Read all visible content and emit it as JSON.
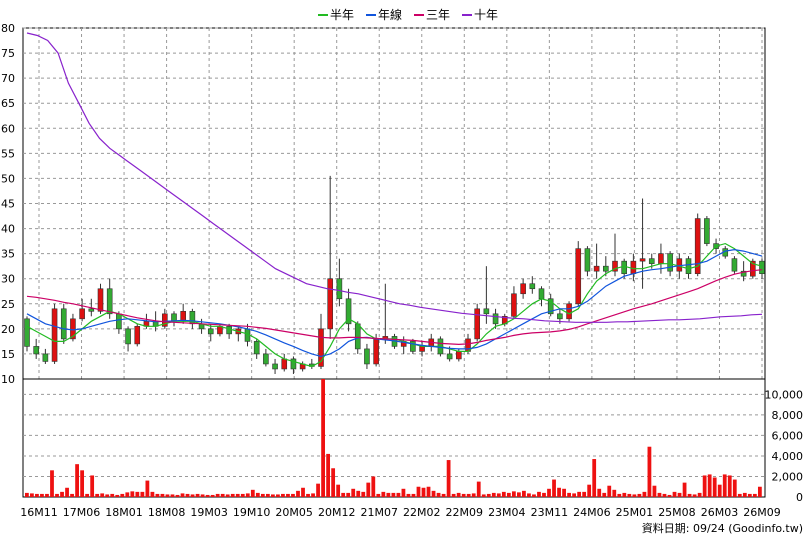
{
  "chart_data": [
    {
      "type": "candlestick",
      "title": "",
      "legend": {
        "placement": "top-center",
        "items": [
          {
            "name": "半年",
            "color": "#22bb22"
          },
          {
            "name": "年線",
            "color": "#1155dd"
          },
          {
            "name": "三年",
            "color": "#cc0066"
          },
          {
            "name": "十年",
            "color": "#8822cc"
          }
        ]
      },
      "ylim": [
        10,
        80
      ],
      "yticks": [
        80,
        75,
        70,
        65,
        60,
        55,
        50,
        45,
        40,
        35,
        30,
        25,
        20,
        15,
        10
      ],
      "xlabels": [
        "16M11",
        "17M06",
        "18M01",
        "18M08",
        "19M03",
        "19M10",
        "20M05",
        "20M12",
        "21M07",
        "22M02",
        "22M09",
        "23M04",
        "23M11",
        "24M06",
        "25M01",
        "25M08",
        "26M03",
        "26M09"
      ],
      "grid": true,
      "candle_colors": {
        "up": "#dd1111",
        "down": "#33aa33"
      },
      "candles": [
        [
          22,
          22.5,
          15.5,
          16.5
        ],
        [
          16.5,
          18,
          14,
          15
        ],
        [
          15,
          16,
          13,
          13.5
        ],
        [
          13.5,
          25,
          13,
          24
        ],
        [
          24,
          25,
          17,
          18
        ],
        [
          18,
          23,
          17.5,
          22
        ],
        [
          22,
          26,
          21.5,
          24
        ],
        [
          24,
          26,
          22.5,
          23.5
        ],
        [
          23.5,
          29,
          23,
          28
        ],
        [
          28,
          30,
          22,
          23
        ],
        [
          23,
          23.5,
          19,
          20
        ],
        [
          20,
          20.5,
          15.5,
          17
        ],
        [
          17,
          21,
          16.5,
          20.5
        ],
        [
          20.5,
          23,
          20,
          21.5
        ],
        [
          21.5,
          23.5,
          19.5,
          20.5
        ],
        [
          20.5,
          24,
          20,
          23
        ],
        [
          23,
          23.5,
          20.5,
          21.5
        ],
        [
          21.5,
          25,
          21,
          23.5
        ],
        [
          23.5,
          24,
          20,
          21
        ],
        [
          21,
          22,
          19,
          20
        ],
        [
          20,
          21,
          17.5,
          19
        ],
        [
          19,
          21,
          18.5,
          20.5
        ],
        [
          20.5,
          21,
          18,
          19
        ],
        [
          19,
          20.5,
          17.5,
          20
        ],
        [
          20,
          21,
          16.5,
          17.5
        ],
        [
          17.5,
          18,
          14,
          15
        ],
        [
          15,
          16,
          12.5,
          13
        ],
        [
          13,
          14,
          11,
          12
        ],
        [
          12,
          15,
          11.5,
          14
        ],
        [
          14,
          14.5,
          11,
          12
        ],
        [
          12,
          13.5,
          11.5,
          13
        ],
        [
          13,
          14,
          12,
          12.5
        ],
        [
          12.5,
          23,
          12,
          20
        ],
        [
          20,
          50.5,
          18,
          30
        ],
        [
          30,
          34,
          24.5,
          26
        ],
        [
          26,
          28,
          19.5,
          21
        ],
        [
          21,
          21.5,
          15,
          16
        ],
        [
          16,
          17,
          12,
          13
        ],
        [
          13,
          19,
          12.5,
          18
        ],
        [
          18,
          29,
          17,
          18.5
        ],
        [
          18.5,
          19,
          16,
          16.5
        ],
        [
          16.5,
          18.5,
          15,
          17.5
        ],
        [
          17.5,
          18,
          15,
          15.5
        ],
        [
          15.5,
          17.5,
          14.5,
          16.5
        ],
        [
          16.5,
          19,
          15.5,
          18
        ],
        [
          18,
          18.5,
          14.5,
          15
        ],
        [
          15,
          16.5,
          13.5,
          14
        ],
        [
          14,
          16,
          13.5,
          15.5
        ],
        [
          15.5,
          19,
          15,
          18
        ],
        [
          18,
          25,
          17.5,
          24
        ],
        [
          24,
          32.5,
          21,
          23
        ],
        [
          23,
          24,
          20,
          21
        ],
        [
          21,
          23,
          20.5,
          22.5
        ],
        [
          22.5,
          28.5,
          22,
          27
        ],
        [
          27,
          30,
          26,
          29
        ],
        [
          29,
          30.5,
          27,
          28
        ],
        [
          28,
          28.5,
          24.5,
          26
        ],
        [
          26,
          27,
          22.5,
          23
        ],
        [
          23,
          24,
          21,
          22
        ],
        [
          22,
          25.5,
          21.5,
          25
        ],
        [
          25,
          37.5,
          24.5,
          36
        ],
        [
          36,
          36.5,
          30.5,
          31.5
        ],
        [
          31.5,
          37,
          30,
          32.5
        ],
        [
          32.5,
          34.5,
          30.5,
          31.5
        ],
        [
          31.5,
          39,
          30.5,
          33.5
        ],
        [
          33.5,
          34,
          30,
          31
        ],
        [
          31,
          35,
          29.5,
          33.5
        ],
        [
          33.5,
          46,
          28,
          34
        ],
        [
          34,
          35,
          32,
          33
        ],
        [
          33,
          37,
          31,
          35
        ],
        [
          35,
          35.5,
          30.5,
          31.5
        ],
        [
          31.5,
          35,
          30,
          34
        ],
        [
          34,
          34.5,
          30,
          31
        ],
        [
          31,
          43,
          30.5,
          42
        ],
        [
          42,
          42.5,
          36.5,
          37
        ],
        [
          37,
          38,
          35,
          36
        ],
        [
          36,
          36.5,
          34,
          34.5
        ],
        [
          34,
          34.5,
          31,
          31.5
        ],
        [
          31.5,
          33.5,
          29.5,
          30.5
        ],
        [
          30.5,
          34,
          30,
          33.5
        ],
        [
          33.5,
          34,
          30,
          31
        ]
      ],
      "series": [
        {
          "name": "半年",
          "values": [
            20.5,
            19.5,
            18.5,
            17.5,
            17.5,
            18.5,
            20,
            21.5,
            22.5,
            23.5,
            23,
            22,
            21,
            20.5,
            20.5,
            21,
            21.5,
            21.5,
            21.5,
            21,
            20.5,
            20.5,
            20,
            19.5,
            19,
            18,
            16.5,
            15,
            14,
            13.5,
            13,
            12.5,
            13.5,
            16.5,
            20,
            22,
            21,
            19,
            18,
            18,
            18,
            17.5,
            17,
            16.5,
            16.5,
            16.5,
            16,
            15.5,
            15.5,
            17,
            19,
            20.5,
            21,
            22,
            23.5,
            25,
            26,
            25.5,
            24,
            23,
            24,
            27,
            29.5,
            31,
            32,
            32.5,
            32,
            32,
            32.5,
            33,
            33,
            32.5,
            32,
            32.5,
            34.5,
            36.5,
            37,
            36,
            34.5,
            33,
            32.5
          ]
        },
        {
          "name": "年線",
          "values": [
            23,
            22,
            21,
            20.5,
            20,
            19.8,
            20,
            20.5,
            21,
            21.5,
            21.8,
            22,
            21.8,
            21.6,
            21.4,
            21.5,
            21.6,
            21.7,
            21.6,
            21.4,
            21.2,
            21,
            20.7,
            20.4,
            20,
            19.5,
            18.8,
            18,
            17.2,
            16.5,
            15.7,
            15,
            14.5,
            15,
            16,
            17.5,
            18.2,
            18.3,
            18,
            17.8,
            17.6,
            17.3,
            17,
            16.7,
            16.5,
            16.3,
            16.1,
            16,
            16,
            16.3,
            17,
            18,
            19,
            20,
            21,
            22,
            23,
            23.5,
            24,
            24,
            24.5,
            25.5,
            27,
            28.5,
            29.5,
            30.5,
            31,
            31.5,
            31.8,
            32,
            32.3,
            32.6,
            32.8,
            33,
            33.5,
            34.5,
            35.5,
            35.8,
            35.5,
            35,
            34.5
          ]
        },
        {
          "name": "三年",
          "values": [
            26.5,
            26.3,
            26,
            25.7,
            25.3,
            25,
            24.6,
            24.2,
            23.8,
            23.4,
            23,
            22.6,
            22.2,
            21.9,
            21.6,
            21.4,
            21.3,
            21.2,
            21.1,
            21,
            20.9,
            20.8,
            20.7,
            20.6,
            20.5,
            20.3,
            20.1,
            19.8,
            19.5,
            19.2,
            18.9,
            18.6,
            18.3,
            18.2,
            18.2,
            18.3,
            18.3,
            18.2,
            18.1,
            18,
            17.9,
            17.8,
            17.7,
            17.5,
            17.3,
            17.1,
            17,
            16.9,
            17,
            17.3,
            17.7,
            18,
            18.3,
            18.7,
            19,
            19.2,
            19.3,
            19.4,
            19.6,
            19.9,
            20.4,
            21,
            21.6,
            22.2,
            22.8,
            23.4,
            24,
            24.5,
            25,
            25.6,
            26.2,
            26.8,
            27.4,
            28,
            28.8,
            29.6,
            30.3,
            30.9,
            31.3,
            31.6,
            31.8
          ]
        },
        {
          "name": "十年",
          "values": [
            79,
            78.5,
            77.5,
            75,
            69,
            65,
            61,
            58,
            56,
            54.5,
            53,
            51.5,
            50,
            48.5,
            47,
            45.5,
            44,
            42.5,
            41,
            39.5,
            38,
            36.5,
            35,
            33.5,
            32,
            31,
            30,
            29,
            28.5,
            28,
            27.7,
            27.3,
            27,
            26.5,
            26,
            25.5,
            25,
            24.7,
            24.3,
            24,
            23.7,
            23.4,
            23.1,
            22.9,
            22.7,
            22.5,
            22.3,
            22.1,
            22,
            21.8,
            21.6,
            21.5,
            21.4,
            21.3,
            21.3,
            21.3,
            21.3,
            21.4,
            21.4,
            21.5,
            21.6,
            21.7,
            21.8,
            21.8,
            21.9,
            22,
            22.2,
            22.4,
            22.5,
            22.6,
            22.8,
            22.9
          ]
        }
      ],
      "volume": {
        "yticks": [
          0,
          2000,
          4000,
          6000,
          8000,
          10000
        ],
        "ytick_labels": [
          "0",
          "2,000",
          "4,000",
          "6,000",
          "8,000",
          "10,000"
        ],
        "ylim": [
          0,
          11500
        ],
        "values": [
          400,
          350,
          300,
          300,
          300,
          2600,
          300,
          500,
          900,
          300,
          3200,
          2600,
          300,
          2100,
          300,
          350,
          250,
          300,
          200,
          300,
          450,
          550,
          500,
          500,
          1600,
          500,
          300,
          300,
          250,
          250,
          200,
          350,
          300,
          250,
          300,
          250,
          200,
          200,
          300,
          300,
          250,
          300,
          300,
          300,
          350,
          700,
          400,
          300,
          300,
          250,
          250,
          300,
          300,
          300,
          600,
          900,
          300,
          350,
          1300,
          11500,
          4200,
          2800,
          1200,
          400,
          400,
          800,
          600,
          500,
          1400,
          2000,
          300,
          500,
          400,
          400,
          400,
          800,
          300,
          300,
          1000,
          900,
          1000,
          600,
          400,
          300,
          3600,
          300,
          400,
          300,
          300,
          350,
          1500,
          250,
          300,
          400,
          350,
          500,
          400,
          550,
          450,
          600,
          350,
          250,
          500,
          400,
          800,
          1700,
          900,
          800,
          400,
          350,
          500,
          500,
          1200,
          3700,
          800,
          400,
          1100,
          700,
          300,
          400,
          300,
          250,
          300,
          500,
          4900,
          1100,
          400,
          300,
          200,
          500,
          400,
          1400,
          300,
          250,
          400,
          2100,
          2200,
          1900,
          1200,
          2200,
          2100,
          1700,
          300,
          400,
          300,
          300,
          1000
        ]
      }
    }
  ],
  "footer": {
    "source": "資料日期: 09/24  (Goodinfo.tw)"
  }
}
